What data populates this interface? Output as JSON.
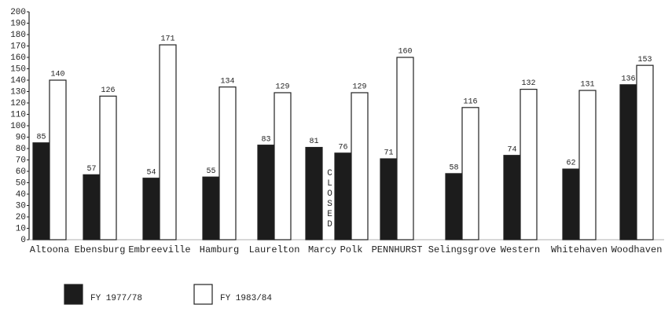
{
  "chart_data": {
    "type": "bar",
    "categories": [
      "Altoona",
      "Ebensburg",
      "Embreeville",
      "Hamburg",
      "Laurelton",
      "Marcy",
      "Polk",
      "PENNHURST",
      "Selingsgrove",
      "Western",
      "Whitehaven",
      "Woodhaven"
    ],
    "series": [
      {
        "name": "FY 1977/78",
        "color": "#1c1c1c",
        "values": [
          85,
          57,
          54,
          55,
          83,
          81,
          76,
          71,
          58,
          74,
          62,
          136
        ]
      },
      {
        "name": "FY 1983/84",
        "color": "#ffffff",
        "values": [
          140,
          126,
          171,
          134,
          129,
          null,
          129,
          160,
          116,
          132,
          131,
          153
        ]
      }
    ],
    "annotation": "CLOSED",
    "ylim": [
      0,
      200
    ],
    "yticks": [
      0,
      10,
      20,
      30,
      40,
      50,
      60,
      70,
      80,
      90,
      100,
      110,
      120,
      130,
      140,
      150,
      160,
      170,
      180,
      190,
      200
    ],
    "grid": false,
    "legend": "bottom-left"
  }
}
